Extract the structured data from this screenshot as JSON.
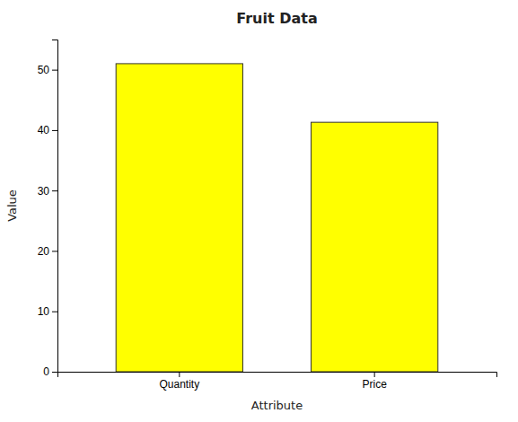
{
  "chart_data": {
    "type": "bar",
    "title": "Fruit Data",
    "xlabel": "Attribute",
    "ylabel": "Value",
    "categories": [
      "Quantity",
      "Price"
    ],
    "values": [
      51,
      41.3
    ],
    "color": "#ffff00",
    "ylim": [
      0,
      55
    ],
    "yticks": [
      0,
      10,
      20,
      30,
      40,
      50
    ],
    "grid": false
  }
}
